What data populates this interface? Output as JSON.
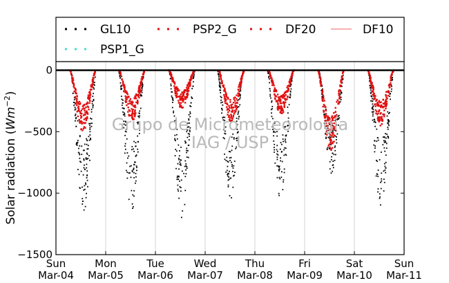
{
  "chart_data": {
    "type": "scatter",
    "ylabel": "Solar radiation (Wm^-2)",
    "ylabel_prefix": "Solar radiation (",
    "ylabel_unit": "Wm",
    "ylabel_exponent": "−2",
    "ylabel_suffix": ")",
    "ylim": [
      -1500,
      70
    ],
    "yticks": [
      0,
      -500,
      -1000,
      -1500
    ],
    "ytick_labels": [
      "0",
      "−500",
      "−1000",
      "−1500"
    ],
    "x_start": "2018-03-04",
    "x_end": "2018-03-11",
    "xticks": [
      {
        "day": "Sun",
        "date": "Mar-04"
      },
      {
        "day": "Mon",
        "date": "Mar-05"
      },
      {
        "day": "Tue",
        "date": "Mar-06"
      },
      {
        "day": "Wed",
        "date": "Mar-07"
      },
      {
        "day": "Thu",
        "date": "Mar-08"
      },
      {
        "day": "Fri",
        "date": "Mar-09"
      },
      {
        "day": "Sat",
        "date": "Mar-10"
      },
      {
        "day": "Sun",
        "date": "Mar-11"
      }
    ],
    "grid": "vertical",
    "legend_position": "top",
    "watermark": [
      "Grupo de Micrometeorologia",
      "IAG / USP"
    ],
    "series": [
      {
        "name": "GL10",
        "style": "dots",
        "color": "#000000",
        "daily_peak": [
          -1100,
          -1100,
          -1150,
          -1000,
          -1000,
          -800,
          -1050
        ],
        "daily_noon_hour": [
          13.3,
          12.5,
          12.8,
          12.2,
          12.3,
          13.0,
          12.8
        ]
      },
      {
        "name": "PSP2_G",
        "style": "dots",
        "color": "#e01010",
        "daily_peak": [
          -480,
          -400,
          -300,
          -410,
          -350,
          -620,
          -430
        ],
        "daily_noon_hour": [
          13.0,
          12.7,
          12.7,
          12.7,
          12.7,
          12.7,
          12.7
        ]
      },
      {
        "name": "DF20",
        "style": "dots",
        "color": "#e01010",
        "daily_peak": [
          -470,
          -390,
          -290,
          -400,
          -345,
          -610,
          -420
        ],
        "daily_noon_hour": [
          13.0,
          12.7,
          12.7,
          12.7,
          12.7,
          12.7,
          12.7
        ]
      },
      {
        "name": "DF10",
        "style": "line",
        "color": "#f08080"
      },
      {
        "name": "PSP1_G",
        "style": "dots",
        "color": "#40e0d0"
      }
    ]
  }
}
